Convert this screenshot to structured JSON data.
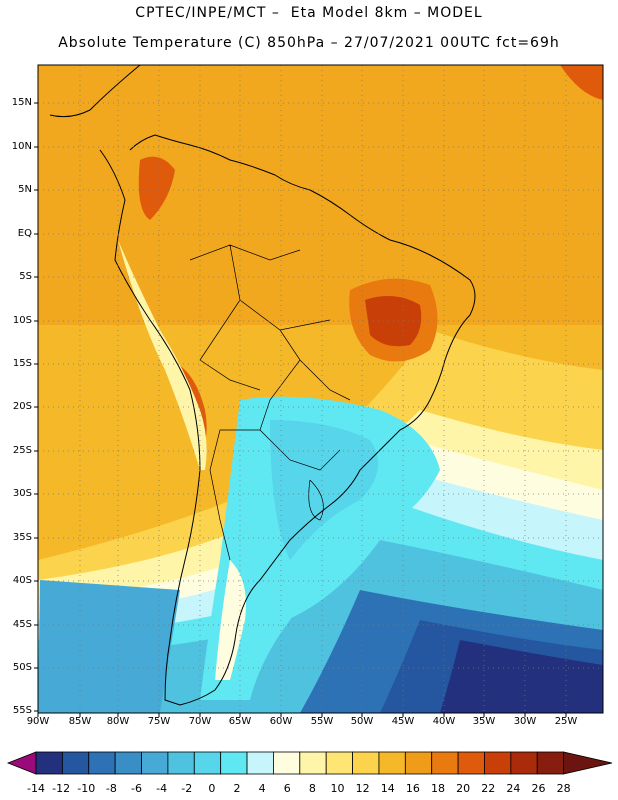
{
  "header": {
    "line1": "CPTEC/INPE/MCT –  Eta Model 8km – MODEL",
    "line2": "Absolute Temperature (C) 850hPa – 27/07/2021 00UTC fct=69h"
  },
  "axes": {
    "lat_labels": [
      "15N",
      "10N",
      "5N",
      "EQ",
      "5S",
      "10S",
      "15S",
      "20S",
      "25S",
      "30S",
      "35S",
      "40S",
      "45S",
      "50S",
      "55S"
    ],
    "lon_labels": [
      "90W",
      "85W",
      "80W",
      "75W",
      "70W",
      "65W",
      "60W",
      "55W",
      "50W",
      "45W",
      "40W",
      "35W",
      "30W",
      "25W"
    ],
    "lat_range": [
      -55,
      18
    ],
    "lon_range": [
      -90,
      -23
    ]
  },
  "colorbar": {
    "tick_labels": [
      "-14",
      "-12",
      "-10",
      "-8",
      "-6",
      "-4",
      "-2",
      "0",
      "2",
      "4",
      "6",
      "8",
      "10",
      "12",
      "14",
      "16",
      "18",
      "20",
      "22",
      "24",
      "26",
      "28"
    ],
    "colors": [
      "#9b0a7a",
      "#22307e",
      "#2556a0",
      "#2c72b5",
      "#3a8ec6",
      "#47a9d5",
      "#4fc2e0",
      "#57d5ea",
      "#5fe7f2",
      "#c6f5fb",
      "#fffde0",
      "#fff5a8",
      "#ffe574",
      "#fcd34d",
      "#f5b829",
      "#ef9d18",
      "#e97a10",
      "#df5a0b",
      "#c93f08",
      "#a92b0a",
      "#861d0e",
      "#6b1410"
    ]
  },
  "chart_data": {
    "type": "heatmap",
    "title": "Absolute Temperature (C) 850hPa – 27/07/2021 00UTC fct=69h",
    "units": "C",
    "levels": [
      -14,
      -12,
      -10,
      -8,
      -6,
      -4,
      -2,
      0,
      2,
      4,
      6,
      8,
      10,
      12,
      14,
      16,
      18,
      20,
      22,
      24,
      26,
      28
    ],
    "grid": true
  }
}
